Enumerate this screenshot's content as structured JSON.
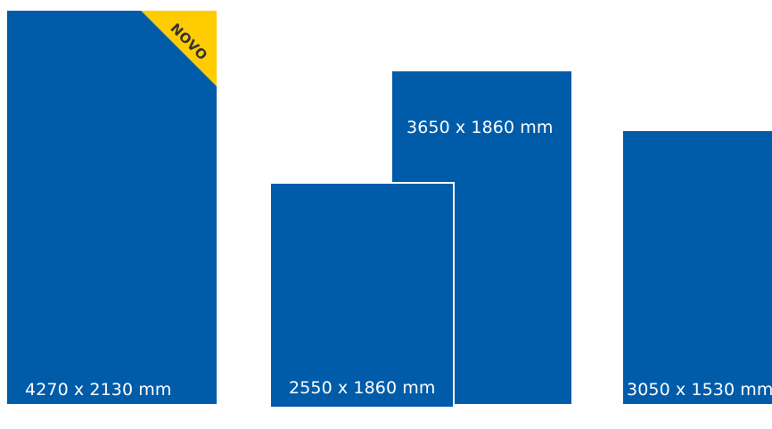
{
  "panels": {
    "a": {
      "label": "4270 x 2130 mm",
      "badge": "NOVO"
    },
    "b": {
      "label": "2550 x 1860 mm"
    },
    "c": {
      "label": "3650 x 1860 mm"
    },
    "d": {
      "label": "3050 x 1530 mm"
    }
  },
  "colors": {
    "panel": "#005ca9",
    "badge": "#ffcc00",
    "text": "#ffffff"
  }
}
